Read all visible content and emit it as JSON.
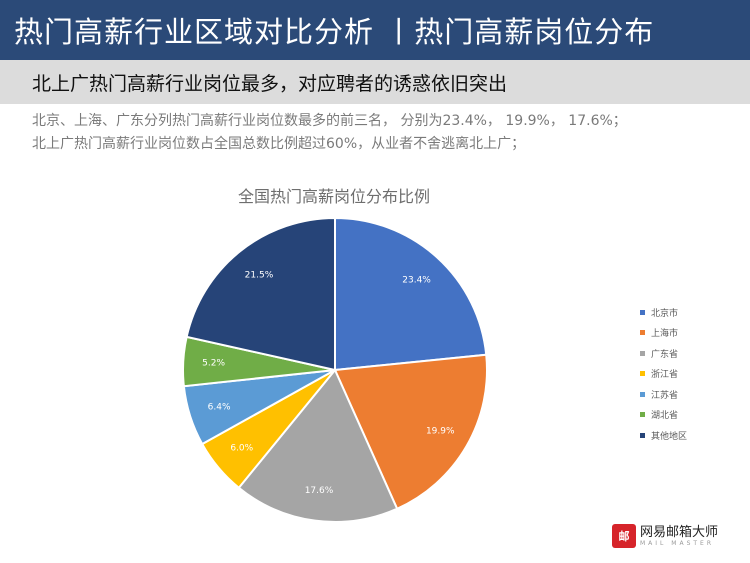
{
  "header": {
    "title": "热门高薪行业区域对比分析 丨热门高薪岗位分布"
  },
  "subheader": {
    "text": "北上广热门高薪行业岗位最多，对应聘者的诱惑依旧突出"
  },
  "description": {
    "line1": "北京、上海、广东分列热门高薪行业岗位数最多的前三名， 分别为23.4%， 19.9%， 17.6%；",
    "line2": "北上广热门高薪行业岗位数占全国总数比例超过60%，从业者不舍逃离北上广；"
  },
  "chart_data": {
    "type": "pie",
    "title": "全国热门高薪岗位分布比例",
    "unit": "%",
    "legend_position": "right",
    "slices": [
      {
        "name": "北京市",
        "value": 23.4,
        "label": "23.4%",
        "color": "#4472c4"
      },
      {
        "name": "上海市",
        "value": 19.9,
        "label": "19.9%",
        "color": "#ed7d31"
      },
      {
        "name": "广东省",
        "value": 17.6,
        "label": "17.6%",
        "color": "#a5a5a5"
      },
      {
        "name": "浙江省",
        "value": 6.0,
        "label": "6.0%",
        "color": "#ffc000"
      },
      {
        "name": "江苏省",
        "value": 6.4,
        "label": "6.4%",
        "color": "#5b9bd5"
      },
      {
        "name": "湖北省",
        "value": 5.2,
        "label": "5.2%",
        "color": "#70ad47"
      },
      {
        "name": "其他地区",
        "value": 21.5,
        "label": "21.5%",
        "color": "#264478"
      }
    ]
  },
  "brand": {
    "logo_text": "邮",
    "name": "网易邮箱大师",
    "sub": "MAIL MASTER"
  }
}
